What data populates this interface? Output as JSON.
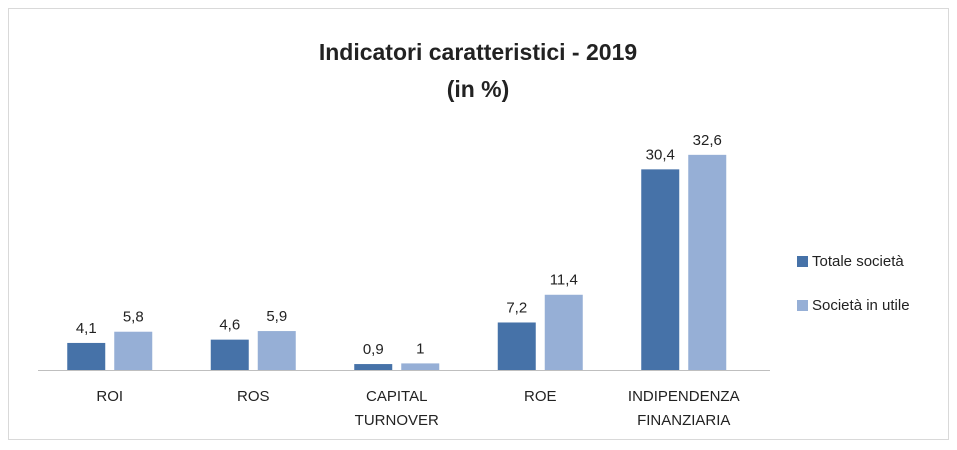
{
  "chart_data": {
    "type": "bar",
    "title": "Indicatori caratteristici - 2019",
    "subtitle": "(in %)",
    "categories": [
      [
        "ROI"
      ],
      [
        "ROS"
      ],
      [
        "CAPITAL",
        "TURNOVER"
      ],
      [
        "ROE"
      ],
      [
        "INDIPENDENZA",
        "FINANZIARIA"
      ]
    ],
    "series": [
      {
        "name": "Totale società",
        "color": "#4672a8",
        "values": [
          4.1,
          4.6,
          0.9,
          7.2,
          30.4
        ],
        "value_labels": [
          "4,1",
          "4,6",
          "0,9",
          "7,2",
          "30,4"
        ]
      },
      {
        "name": "Società in utile",
        "color": "#96afd6",
        "values": [
          5.8,
          5.9,
          1,
          11.4,
          32.6
        ],
        "value_labels": [
          "5,8",
          "5,9",
          "1",
          "11,4",
          "32,6"
        ]
      }
    ],
    "ylim": [
      0,
      35
    ],
    "legend": "right"
  }
}
